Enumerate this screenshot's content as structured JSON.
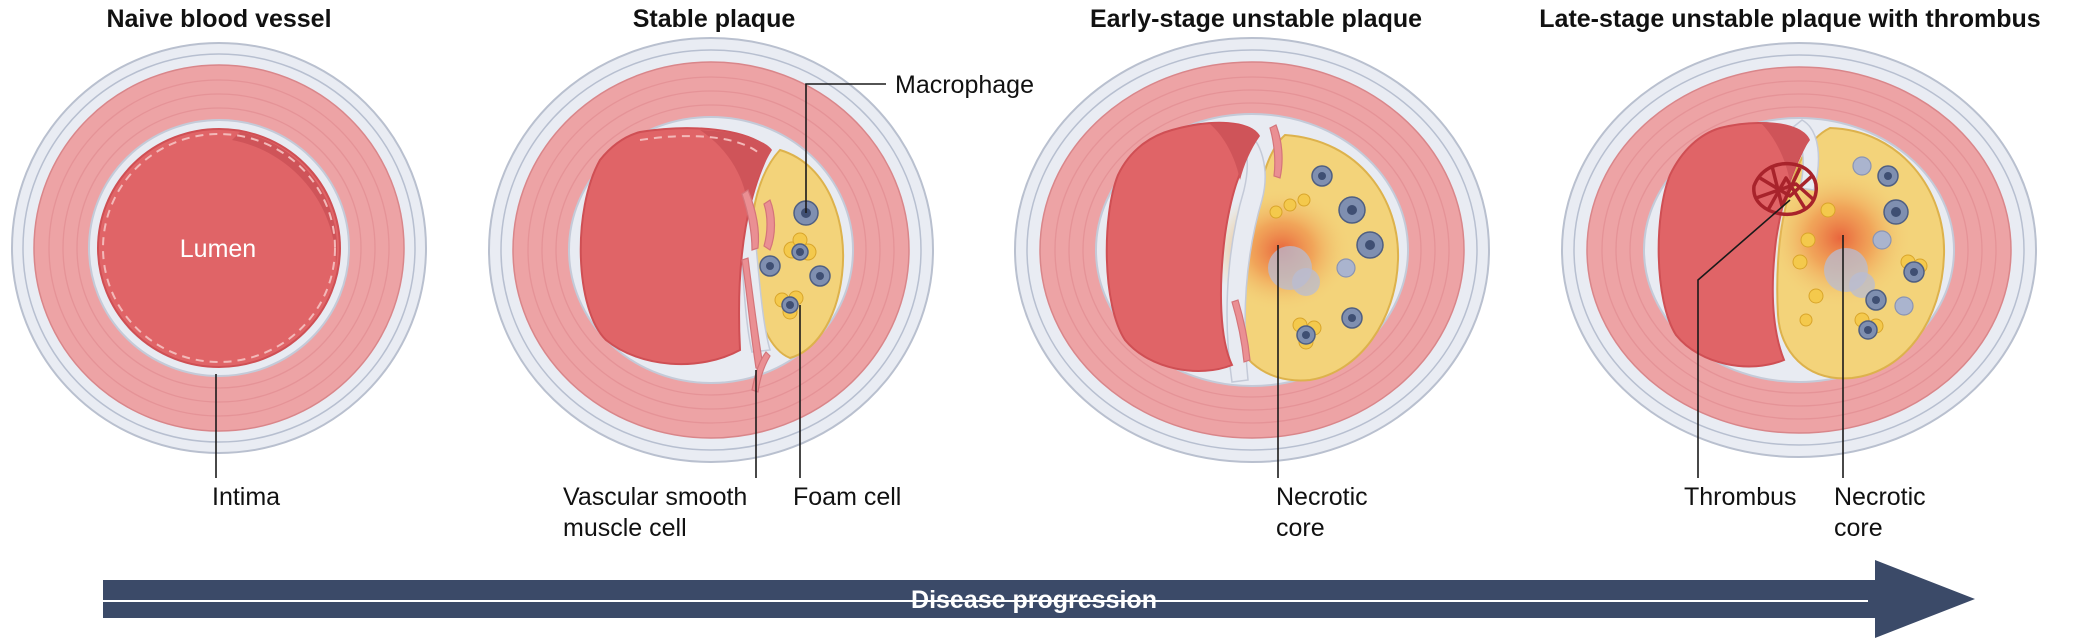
{
  "panels": [
    {
      "title": "Naive blood vessel",
      "lumen_label": "Lumen",
      "labels": [
        "Intima"
      ]
    },
    {
      "title": "Stable plaque",
      "labels": [
        "Macrophage",
        "Vascular smooth",
        "muscle cell",
        "Foam cell"
      ]
    },
    {
      "title": "Early-stage unstable plaque",
      "labels": [
        "Necrotic",
        "core"
      ]
    },
    {
      "title": "Late-stage unstable plaque with thrombus",
      "labels": [
        "Thrombus",
        "Necrotic",
        "core"
      ]
    }
  ],
  "arrow": {
    "label": "Disease progression"
  },
  "colors": {
    "adventitia": "#e9ecf3",
    "media": "#eda3a5",
    "lumen": "#e06467",
    "plaque": "#f3d37a",
    "arrow": "#3b4a68",
    "thrombus": "#a8232b"
  }
}
